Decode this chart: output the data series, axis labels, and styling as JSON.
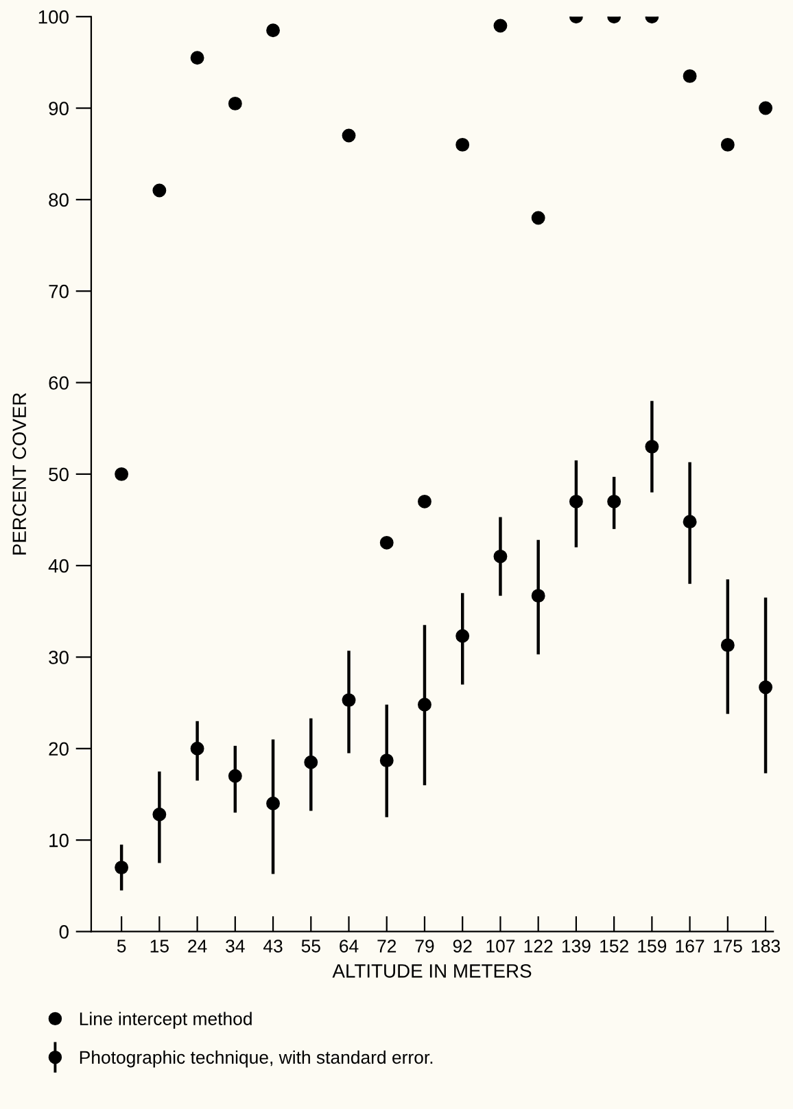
{
  "chart_data": {
    "type": "scatter",
    "xlabel": "ALTITUDE IN METERS",
    "ylabel": "PERCENT COVER",
    "categories": [
      "5",
      "15",
      "24",
      "34",
      "43",
      "55",
      "64",
      "72",
      "79",
      "92",
      "107",
      "122",
      "139",
      "152",
      "159",
      "167",
      "175",
      "183"
    ],
    "ylim": [
      0,
      100
    ],
    "yticks": [
      0,
      10,
      20,
      30,
      40,
      50,
      60,
      70,
      80,
      90,
      100
    ],
    "grid": false,
    "legend": "bottom",
    "marker": "circle",
    "series": [
      {
        "name": "Line intercept method",
        "color": "#000000",
        "values": [
          50,
          81,
          95.5,
          90.5,
          98.5,
          null,
          87,
          42.5,
          47,
          86,
          99,
          78,
          100,
          100,
          100,
          93.5,
          86,
          90
        ]
      },
      {
        "name": "Photographic technique, with standard error.",
        "color": "#000000",
        "values": [
          7,
          12.8,
          20,
          17,
          14,
          18.5,
          25.3,
          18.7,
          24.8,
          32.3,
          41,
          36.7,
          47,
          47,
          53,
          44.8,
          31.3,
          26.7
        ],
        "errors": [
          [
            4.5,
            9.5
          ],
          [
            7.5,
            17.5
          ],
          [
            16.5,
            23
          ],
          [
            13,
            20.3
          ],
          [
            6.3,
            21
          ],
          [
            13.2,
            23.3
          ],
          [
            19.5,
            30.7
          ],
          [
            12.5,
            24.8
          ],
          [
            16,
            33.5
          ],
          [
            27,
            37
          ],
          [
            36.7,
            45.3
          ],
          [
            30.3,
            42.8
          ],
          [
            42,
            51.5
          ],
          [
            44,
            49.7
          ],
          [
            48,
            58
          ],
          [
            38,
            51.3
          ],
          [
            23.8,
            38.5
          ],
          [
            17.3,
            36.5
          ]
        ]
      }
    ]
  }
}
